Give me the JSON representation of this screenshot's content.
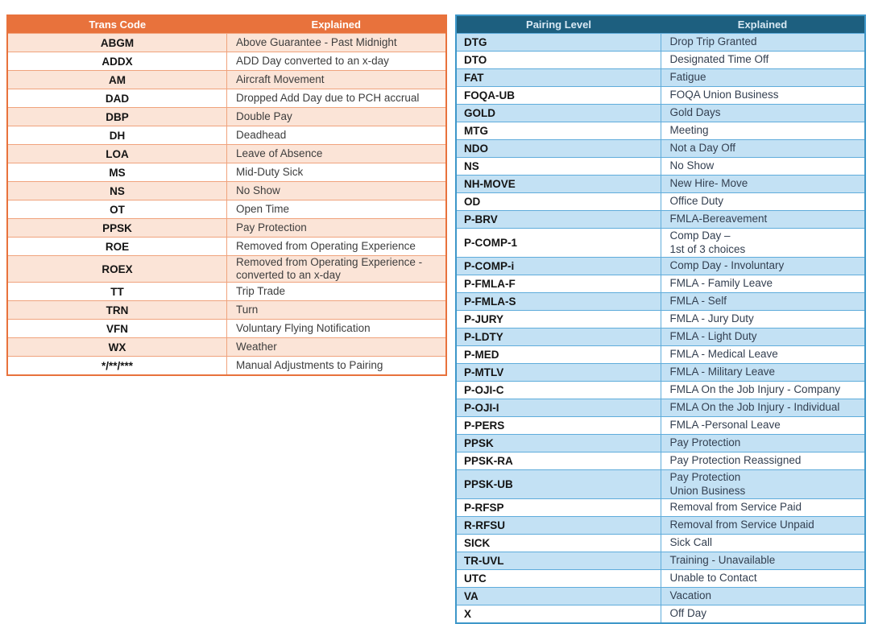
{
  "colors": {
    "left_accent": "#E8723C",
    "left_row_shade": "#FBE4D7",
    "left_border": "#F0A37D",
    "right_header_bg": "#1D5F7F",
    "right_row_shade": "#C3E1F4",
    "right_border": "#5FACDB",
    "right_border_outer": "#3E97C9"
  },
  "left_table": {
    "headers": [
      "Trans Code",
      "Explained"
    ],
    "rows": [
      [
        "ABGM",
        "Above Guarantee - Past Midnight"
      ],
      [
        "ADDX",
        "ADD Day converted to an x-day"
      ],
      [
        "AM",
        "Aircraft Movement"
      ],
      [
        "DAD",
        "Dropped Add Day due to PCH accrual"
      ],
      [
        "DBP",
        "Double Pay"
      ],
      [
        "DH",
        "Deadhead"
      ],
      [
        "LOA",
        "Leave of Absence"
      ],
      [
        "MS",
        "Mid-Duty Sick"
      ],
      [
        "NS",
        "No Show"
      ],
      [
        "OT",
        "Open Time"
      ],
      [
        "PPSK",
        "Pay Protection"
      ],
      [
        "ROE",
        "Removed from Operating Experience"
      ],
      [
        "ROEX",
        "Removed from Operating Experience - converted to an x-day"
      ],
      [
        "TT",
        "Trip Trade"
      ],
      [
        "TRN",
        "Turn"
      ],
      [
        "VFN",
        "Voluntary Flying Notification"
      ],
      [
        "WX",
        "Weather"
      ],
      [
        "*/**/***",
        "Manual Adjustments to Pairing"
      ]
    ]
  },
  "right_table": {
    "headers": [
      "Pairing Level",
      "Explained"
    ],
    "rows": [
      [
        "DTG",
        "Drop Trip Granted"
      ],
      [
        "DTO",
        "Designated Time Off"
      ],
      [
        "FAT",
        "Fatigue"
      ],
      [
        "FOQA-UB",
        "FOQA Union Business"
      ],
      [
        "GOLD",
        "Gold Days"
      ],
      [
        "MTG",
        "Meeting"
      ],
      [
        "NDO",
        "Not a Day Off"
      ],
      [
        "NS",
        "No Show"
      ],
      [
        "NH-MOVE",
        "New Hire- Move"
      ],
      [
        "OD",
        "Office Duty"
      ],
      [
        "P-BRV",
        "FMLA-Bereavement"
      ],
      [
        "P-COMP-1",
        "Comp Day –\n1st of 3 choices"
      ],
      [
        "P-COMP-i",
        "Comp Day - Involuntary"
      ],
      [
        "P-FMLA-F",
        "FMLA - Family Leave"
      ],
      [
        "P-FMLA-S",
        "FMLA - Self"
      ],
      [
        "P-JURY",
        "FMLA - Jury Duty"
      ],
      [
        "P-LDTY",
        "FMLA - Light Duty"
      ],
      [
        "P-MED",
        "FMLA - Medical Leave"
      ],
      [
        "P-MTLV",
        "FMLA - Military Leave"
      ],
      [
        "P-OJI-C",
        "FMLA On the Job Injury - Company"
      ],
      [
        "P-OJI-I",
        "FMLA On the Job Injury - Individual"
      ],
      [
        "P-PERS",
        "FMLA -Personal Leave"
      ],
      [
        "PPSK",
        "Pay Protection"
      ],
      [
        "PPSK-RA",
        "Pay Protection Reassigned"
      ],
      [
        "PPSK-UB",
        "Pay Protection\nUnion Business"
      ],
      [
        "P-RFSP",
        "Removal from Service Paid"
      ],
      [
        "R-RFSU",
        "Removal from Service Unpaid"
      ],
      [
        "SICK",
        "Sick Call"
      ],
      [
        "TR-UVL",
        "Training - Unavailable"
      ],
      [
        "UTC",
        "Unable to Contact"
      ],
      [
        "VA",
        "Vacation"
      ],
      [
        "X",
        "Off Day"
      ]
    ]
  }
}
